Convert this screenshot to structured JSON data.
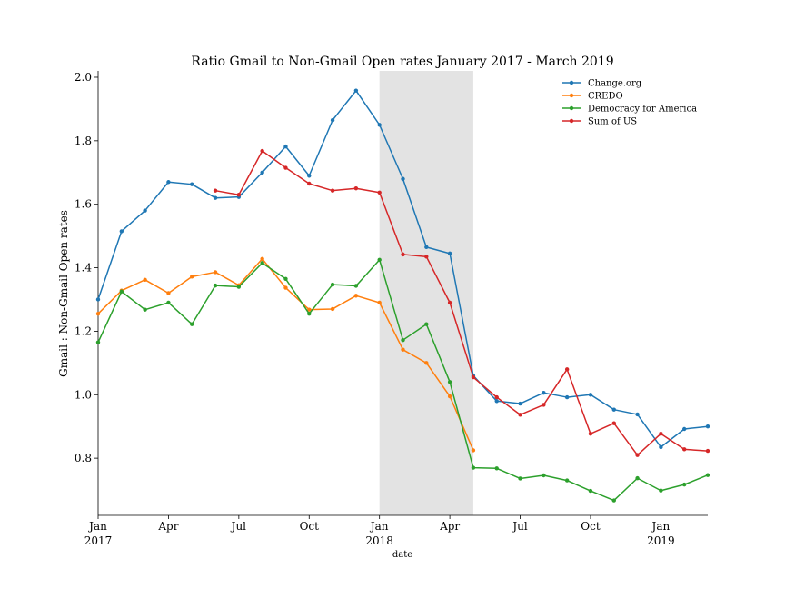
{
  "chart_data": {
    "type": "line",
    "title": "Ratio Gmail to Non-Gmail Open rates January 2017 - March 2019",
    "xlabel": "date",
    "ylabel": "Gmail : Non-Gmail Open rates",
    "ylim": [
      0.62,
      2.02
    ],
    "x_range": [
      "2017-01",
      "2019-03"
    ],
    "y_ticks": [
      "0.8",
      "1.0",
      "1.2",
      "1.4",
      "1.6",
      "1.8",
      "2.0"
    ],
    "x_ticks": [
      {
        "date": "2017-01",
        "label": "Jan",
        "year": "2017"
      },
      {
        "date": "2017-04",
        "label": "Apr",
        "year": ""
      },
      {
        "date": "2017-07",
        "label": "Jul",
        "year": ""
      },
      {
        "date": "2017-10",
        "label": "Oct",
        "year": ""
      },
      {
        "date": "2018-01",
        "label": "Jan",
        "year": "2018"
      },
      {
        "date": "2018-04",
        "label": "Apr",
        "year": ""
      },
      {
        "date": "2018-07",
        "label": "Jul",
        "year": ""
      },
      {
        "date": "2018-10",
        "label": "Oct",
        "year": ""
      },
      {
        "date": "2019-01",
        "label": "Jan",
        "year": "2019"
      }
    ],
    "shaded_region": {
      "from": "2018-01",
      "to": "2018-05",
      "color": "#e3e3e3"
    },
    "legend_position": "top-right",
    "grid": false,
    "series": [
      {
        "name": "Change.org",
        "color": "#1f77b4",
        "points": [
          [
            "2017-01",
            1.3
          ],
          [
            "2017-02",
            1.515
          ],
          [
            "2017-03",
            1.58
          ],
          [
            "2017-04",
            1.67
          ],
          [
            "2017-05",
            1.663
          ],
          [
            "2017-06",
            1.62
          ],
          [
            "2017-07",
            1.623
          ],
          [
            "2017-08",
            1.7
          ],
          [
            "2017-09",
            1.782
          ],
          [
            "2017-10",
            1.69
          ],
          [
            "2017-11",
            1.865
          ],
          [
            "2017-12",
            1.958
          ],
          [
            "2018-01",
            1.85
          ],
          [
            "2018-02",
            1.68
          ],
          [
            "2018-03",
            1.465
          ],
          [
            "2018-04",
            1.445
          ],
          [
            "2018-05",
            1.06
          ],
          [
            "2018-06",
            0.98
          ],
          [
            "2018-07",
            0.972
          ],
          [
            "2018-08",
            1.006
          ],
          [
            "2018-09",
            0.992
          ],
          [
            "2018-10",
            1.0
          ],
          [
            "2018-11",
            0.953
          ],
          [
            "2018-12",
            0.938
          ],
          [
            "2019-01",
            0.835
          ],
          [
            "2019-02",
            0.892
          ],
          [
            "2019-03",
            0.9
          ]
        ]
      },
      {
        "name": "CREDO",
        "color": "#ff7f0e",
        "points": [
          [
            "2017-01",
            1.255
          ],
          [
            "2017-02",
            1.328
          ],
          [
            "2017-03",
            1.362
          ],
          [
            "2017-04",
            1.32
          ],
          [
            "2017-05",
            1.372
          ],
          [
            "2017-06",
            1.386
          ],
          [
            "2017-07",
            1.345
          ],
          [
            "2017-08",
            1.428
          ],
          [
            "2017-09",
            1.337
          ],
          [
            "2017-10",
            1.268
          ],
          [
            "2017-11",
            1.27
          ],
          [
            "2017-12",
            1.312
          ],
          [
            "2018-01",
            1.29
          ],
          [
            "2018-02",
            1.142
          ],
          [
            "2018-03",
            1.1
          ],
          [
            "2018-04",
            0.995
          ],
          [
            "2018-05",
            0.825
          ]
        ]
      },
      {
        "name": "Democracy for America",
        "color": "#2ca02c",
        "points": [
          [
            "2017-01",
            1.165
          ],
          [
            "2017-02",
            1.325
          ],
          [
            "2017-03",
            1.268
          ],
          [
            "2017-04",
            1.29
          ],
          [
            "2017-05",
            1.222
          ],
          [
            "2017-06",
            1.344
          ],
          [
            "2017-07",
            1.34
          ],
          [
            "2017-08",
            1.415
          ],
          [
            "2017-09",
            1.365
          ],
          [
            "2017-10",
            1.255
          ],
          [
            "2017-11",
            1.347
          ],
          [
            "2017-12",
            1.343
          ],
          [
            "2018-01",
            1.425
          ],
          [
            "2018-02",
            1.172
          ],
          [
            "2018-03",
            1.222
          ],
          [
            "2018-04",
            1.04
          ],
          [
            "2018-05",
            0.77
          ],
          [
            "2018-06",
            0.768
          ],
          [
            "2018-07",
            0.736
          ],
          [
            "2018-08",
            0.746
          ],
          [
            "2018-09",
            0.73
          ],
          [
            "2018-10",
            0.697
          ],
          [
            "2018-11",
            0.667
          ],
          [
            "2018-12",
            0.737
          ],
          [
            "2019-01",
            0.698
          ],
          [
            "2019-02",
            0.717
          ],
          [
            "2019-03",
            0.747
          ]
        ]
      },
      {
        "name": "Sum of US",
        "color": "#d62728",
        "points": [
          [
            "2017-06",
            1.643
          ],
          [
            "2017-07",
            1.63
          ],
          [
            "2017-08",
            1.768
          ],
          [
            "2017-09",
            1.715
          ],
          [
            "2017-10",
            1.665
          ],
          [
            "2017-11",
            1.643
          ],
          [
            "2017-12",
            1.65
          ],
          [
            "2018-01",
            1.637
          ],
          [
            "2018-02",
            1.442
          ],
          [
            "2018-03",
            1.435
          ],
          [
            "2018-04",
            1.29
          ],
          [
            "2018-05",
            1.055
          ],
          [
            "2018-06",
            0.992
          ],
          [
            "2018-07",
            0.937
          ],
          [
            "2018-08",
            0.968
          ],
          [
            "2018-09",
            1.08
          ],
          [
            "2018-10",
            0.877
          ],
          [
            "2018-11",
            0.91
          ],
          [
            "2018-12",
            0.81
          ],
          [
            "2019-01",
            0.877
          ],
          [
            "2019-02",
            0.828
          ],
          [
            "2019-03",
            0.823
          ]
        ]
      }
    ]
  }
}
